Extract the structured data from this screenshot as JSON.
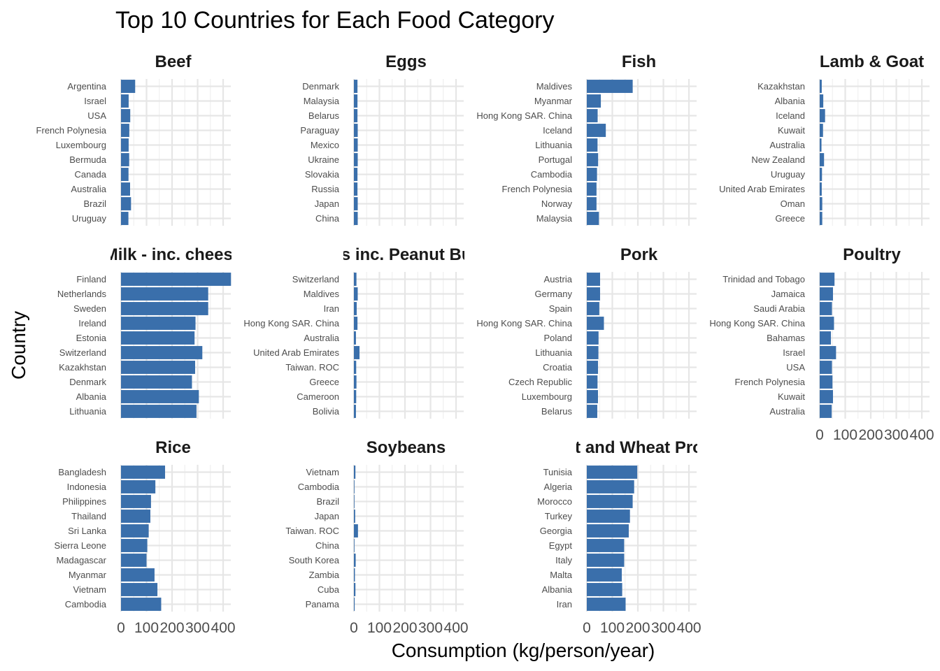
{
  "chart_data": {
    "type": "bar",
    "orientation": "horizontal",
    "title": "Top 10 Countries for Each Food Category",
    "xlabel": "Consumption (kg/person/year)",
    "ylabel": "Country",
    "xlim": [
      0,
      430
    ],
    "x_ticks": [
      0,
      100,
      200,
      300,
      400
    ],
    "x_tick_labels": [
      "0",
      "100",
      "200",
      "300",
      "400"
    ],
    "grid": true,
    "bar_color": "#3a6fab",
    "panels": [
      {
        "name": "Beef",
        "categories": [
          "Argentina",
          "Israel",
          "USA",
          "French Polynesia",
          "Luxembourg",
          "Bermuda",
          "Canada",
          "Australia",
          "Brazil",
          "Uruguay"
        ],
        "values": [
          55.5,
          30,
          36.2,
          32.5,
          30,
          32,
          29.4,
          35.6,
          39.3,
          29
        ]
      },
      {
        "name": "Eggs",
        "categories": [
          "Denmark",
          "Malaysia",
          "Belarus",
          "Paraguay",
          "Mexico",
          "Ukraine",
          "Slovakia",
          "Russia",
          "Japan",
          "China"
        ],
        "values": [
          14,
          14,
          14,
          15,
          15,
          15,
          14,
          14,
          15,
          15
        ]
      },
      {
        "name": "Fish",
        "categories": [
          "Maldives",
          "Myanmar",
          "Hong Kong SAR. China",
          "Iceland",
          "Lithuania",
          "Portugal",
          "Cambodia",
          "French Polynesia",
          "Norway",
          "Malaysia"
        ],
        "values": [
          179.7,
          55,
          42.5,
          74.4,
          42,
          44.4,
          40,
          38,
          38,
          47.5
        ]
      },
      {
        "name": "Lamb & Goat",
        "categories": [
          "Kazakhstan",
          "Albania",
          "Iceland",
          "Kuwait",
          "Australia",
          "New Zealand",
          "Uruguay",
          "United Arab Emirates",
          "Oman",
          "Greece"
        ],
        "values": [
          8,
          14,
          21,
          13,
          7,
          17,
          9,
          8,
          10,
          10
        ]
      },
      {
        "name": "Milk - inc. cheese",
        "categories": [
          "Finland",
          "Netherlands",
          "Sweden",
          "Ireland",
          "Estonia",
          "Switzerland",
          "Kazakhstan",
          "Denmark",
          "Albania",
          "Lithuania"
        ],
        "values": [
          430.8,
          341.5,
          341.5,
          291.8,
          288.1,
          318.5,
          290.3,
          277.9,
          304.9,
          295.5
        ]
      },
      {
        "name": "Nuts inc. Peanut Butter",
        "categories": [
          "Switzerland",
          "Maldives",
          "Iran",
          "Hong Kong SAR. China",
          "Australia",
          "United Arab Emirates",
          "Taiwan. ROC",
          "Greece",
          "Cameroon",
          "Bolivia"
        ],
        "values": [
          10,
          15,
          11,
          14,
          8,
          22,
          9,
          10,
          9,
          8
        ]
      },
      {
        "name": "Pork",
        "categories": [
          "Austria",
          "Germany",
          "Spain",
          "Hong Kong SAR. China",
          "Poland",
          "Lithuania",
          "Croatia",
          "Czech Republic",
          "Luxembourg",
          "Belarus"
        ],
        "values": [
          52,
          52,
          49,
          67,
          46,
          45.5,
          44,
          42,
          43.8,
          41
        ]
      },
      {
        "name": "Poultry",
        "categories": [
          "Trinidad and Tobago",
          "Jamaica",
          "Saudi Arabia",
          "Hong Kong SAR. China",
          "Bahamas",
          "Israel",
          "USA",
          "French Polynesia",
          "Kuwait",
          "Australia"
        ],
        "values": [
          58,
          52,
          48,
          56,
          44,
          64,
          48,
          50,
          52,
          47
        ]
      },
      {
        "name": "Rice",
        "categories": [
          "Bangladesh",
          "Indonesia",
          "Philippines",
          "Thailand",
          "Sri Lanka",
          "Sierra Leone",
          "Madagascar",
          "Myanmar",
          "Vietnam",
          "Cambodia"
        ],
        "values": [
          172.6,
          134.6,
          117.5,
          115,
          108.5,
          103,
          100,
          131.3,
          142.7,
          157.4
        ]
      },
      {
        "name": "Soybeans",
        "categories": [
          "Vietnam",
          "Cambodia",
          "Brazil",
          "Japan",
          "Taiwan. ROC",
          "China",
          "South Korea",
          "Zambia",
          "Cuba",
          "Panama"
        ],
        "values": [
          6,
          2,
          2,
          5,
          16,
          2,
          7,
          4,
          6,
          3
        ]
      },
      {
        "name": "Wheat and Wheat Products",
        "categories": [
          "Tunisia",
          "Algeria",
          "Morocco",
          "Turkey",
          "Georgia",
          "Egypt",
          "Italy",
          "Malta",
          "Albania",
          "Iran"
        ],
        "values": [
          197.5,
          185.4,
          179.6,
          169,
          164.3,
          146.3,
          146.4,
          137,
          138.6,
          152
        ]
      }
    ]
  }
}
